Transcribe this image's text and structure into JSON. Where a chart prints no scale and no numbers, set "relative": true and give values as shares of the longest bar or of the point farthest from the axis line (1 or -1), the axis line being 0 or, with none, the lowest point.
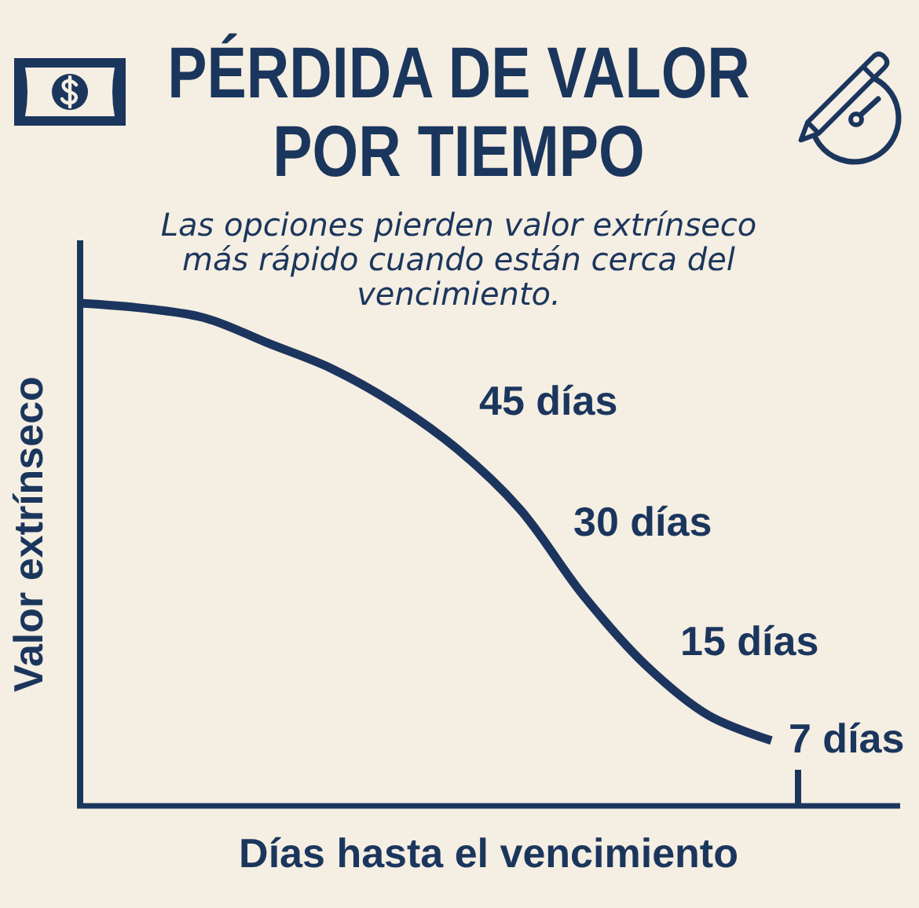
{
  "chart_data": {
    "type": "line",
    "title": "PÉRDIDA DE VALOR POR TIEMPO",
    "subtitle": "Las opciones pierden valor extrínseco más rápido cuando están cerca del vencimiento.",
    "xlabel": "Días hasta el vencimiento",
    "ylabel": "Valor extrínseco",
    "categories": [
      null,
      null,
      null,
      null,
      null,
      null,
      null,
      null,
      null,
      null,
      null,
      null
    ],
    "series": [
      {
        "color": "#1c355e",
        "values": [
          1,
          0.99,
          0.97,
          0.92,
          0.87,
          0.8,
          0.71,
          0.59,
          0.42,
          0.28,
          0.18,
          0.13
        ]
      }
    ],
    "relative": true,
    "annotations": [
      "45 días",
      "30 días",
      "15 días",
      "7 días"
    ]
  }
}
